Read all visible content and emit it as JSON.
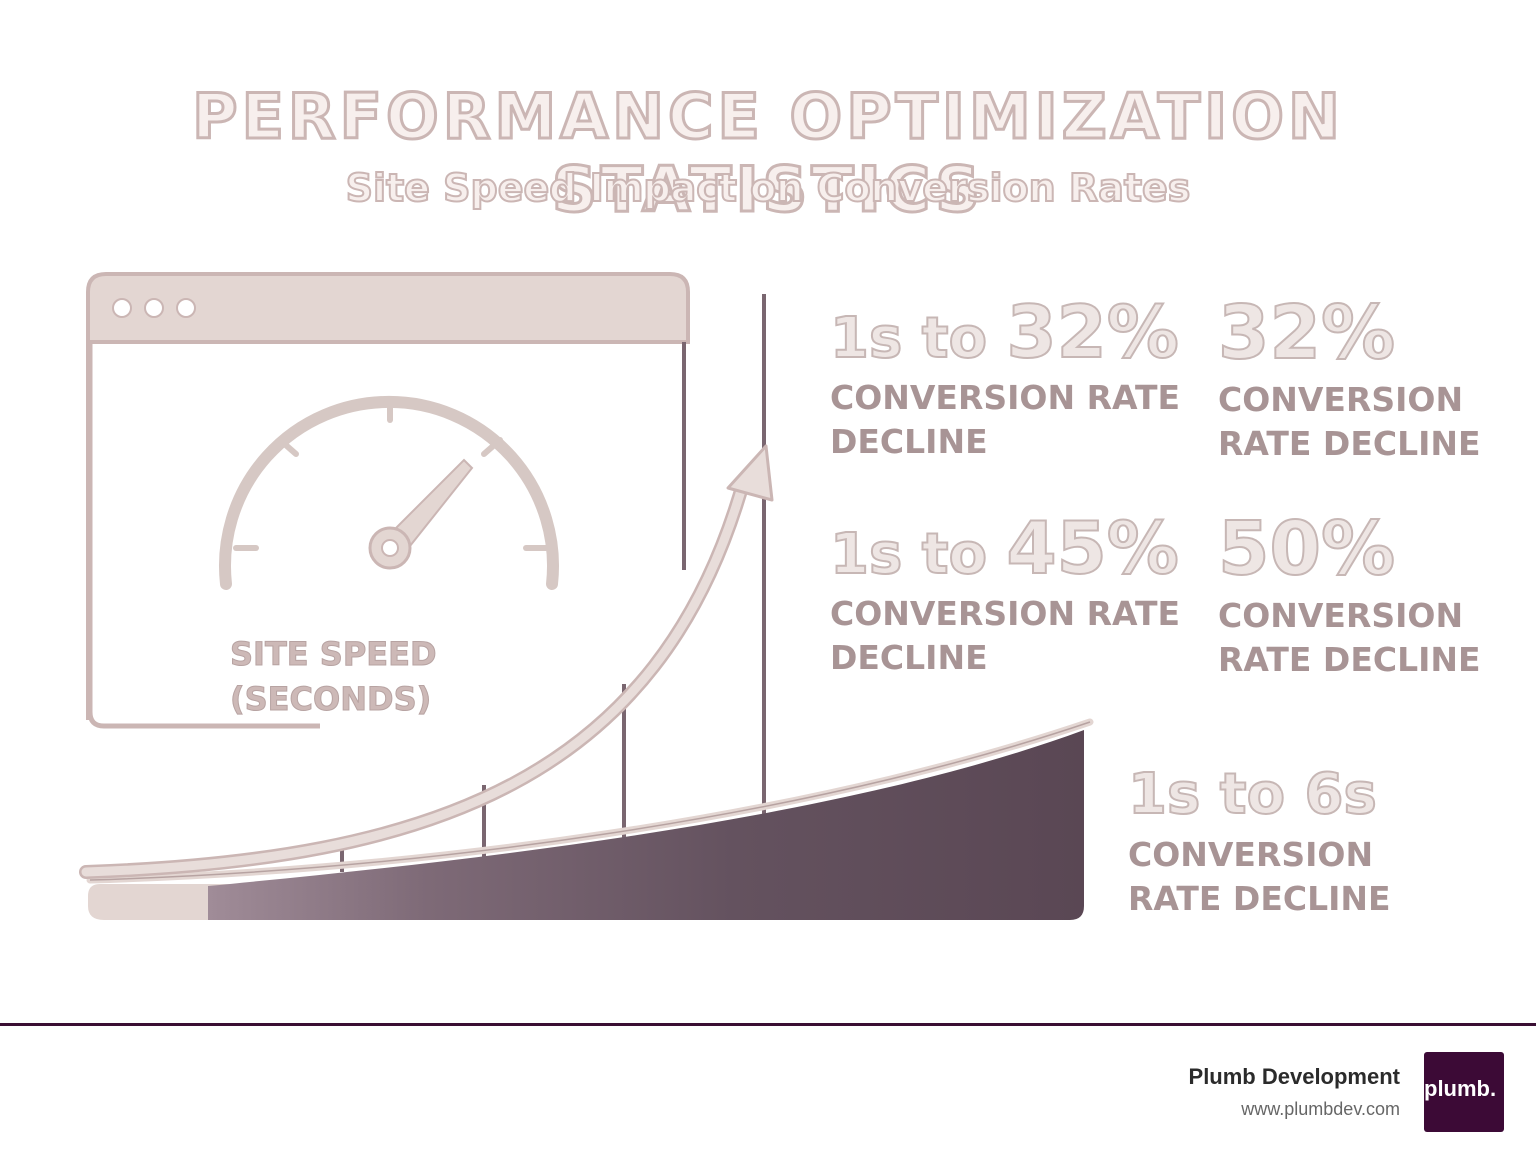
{
  "header": {
    "title": "PERFORMANCE OPTIMIZATION STATISTICS",
    "subtitle": "Site Speed Impact on Conversion Rates"
  },
  "illustration": {
    "speed_label_line1": "SITE SPEED",
    "speed_label_line2": "(SECONDS)",
    "icons": [
      "browser-window-icon",
      "speedometer-icon",
      "upward-arrow-icon",
      "area-wedge-graphic"
    ]
  },
  "stats": [
    {
      "prefix": "1s to ",
      "value": "32%",
      "caption_line1": "CONVERSION RATE",
      "caption_line2": "DECLINE"
    },
    {
      "prefix": "",
      "value": "32%",
      "caption_line1": "CONVERSION",
      "caption_line2": "RATE DECLINE"
    },
    {
      "prefix": "1s to ",
      "value": "45%",
      "caption_line1": "CONVERSION RATE",
      "caption_line2": "DECLINE"
    },
    {
      "prefix": "",
      "value": "50%",
      "caption_line1": "CONVERSION",
      "caption_line2": "RATE DECLINE"
    },
    {
      "prefix": "",
      "value": "1s to 6s",
      "caption_line1": "CONVERSION",
      "caption_line2": "RATE DECLINE"
    }
  ],
  "footer": {
    "company": "Plumb Development",
    "url": "www.plumbdev.com",
    "logo_text": "plumb."
  },
  "colors": {
    "accent_dark": "#3c0a36",
    "wedge_dark": "#5d4a58",
    "soft_outline": "#cbb6b4",
    "soft_fill": "#e3d6d2"
  }
}
